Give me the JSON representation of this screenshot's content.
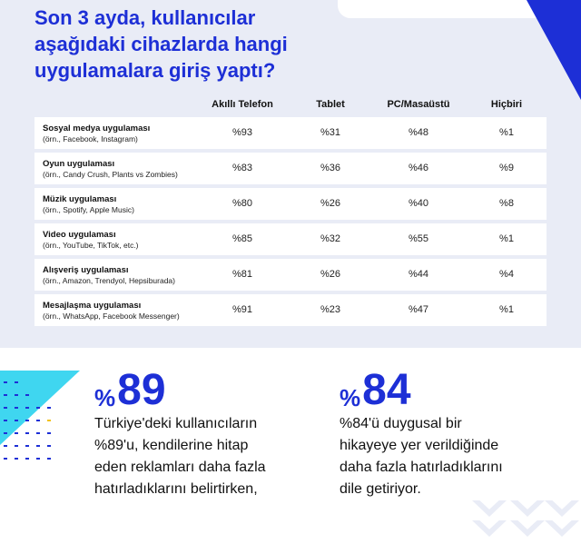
{
  "headline": {
    "line1": "Son 3 ayda, kullanıcılar",
    "line2": "aşağıdaki cihazlarda hangi",
    "line3": "uygulamalara giriş yaptı?"
  },
  "columns": [
    "Akıllı Telefon",
    "Tablet",
    "PC/Masaüstü",
    "Hiçbiri"
  ],
  "rows": [
    {
      "title": "Sosyal medya uygulaması",
      "sub": "(örn., Facebook, Instagram)",
      "values": [
        "%93",
        "%31",
        "%48",
        "%1"
      ]
    },
    {
      "title": "Oyun uygulaması",
      "sub": "(örn., Candy Crush, Plants vs Zombies)",
      "values": [
        "%83",
        "%36",
        "%46",
        "%9"
      ]
    },
    {
      "title": "Müzik uygulaması",
      "sub": "(örn., Spotify, Apple Music)",
      "values": [
        "%80",
        "%26",
        "%40",
        "%8"
      ]
    },
    {
      "title": "Video uygulaması",
      "sub": "(örn., YouTube, TikTok, etc.)",
      "values": [
        "%85",
        "%32",
        "%55",
        "%1"
      ]
    },
    {
      "title": "Alışveriş uygulaması",
      "sub": "(örn., Amazon, Trendyol, Hepsiburada)",
      "values": [
        "%81",
        "%26",
        "%44",
        "%4"
      ]
    },
    {
      "title": "Mesajlaşma uygulaması",
      "sub": "(örn., WhatsApp, Facebook Messenger)",
      "values": [
        "%91",
        "%23",
        "%47",
        "%1"
      ]
    }
  ],
  "stat1": {
    "prefix": "%",
    "number": "89",
    "line1": "Türkiye'deki kullanıcıların",
    "line2": "%89'u, kendilerine hitap",
    "line3": "eden reklamları daha fazla",
    "line4": "hatırladıklarını belirtirken,"
  },
  "stat2": {
    "prefix": "%",
    "number": "84",
    "line1": "%84'ü duygusal bir",
    "line2": "hikayeye yer verildiğinde",
    "line3": "daha fazla hatırladıklarını",
    "line4": "dile getiriyor."
  },
  "colors": {
    "brand_blue": "#1d2fd6",
    "accent_cyan": "#3fd6f0",
    "panel_bg": "#e9ecf6"
  }
}
